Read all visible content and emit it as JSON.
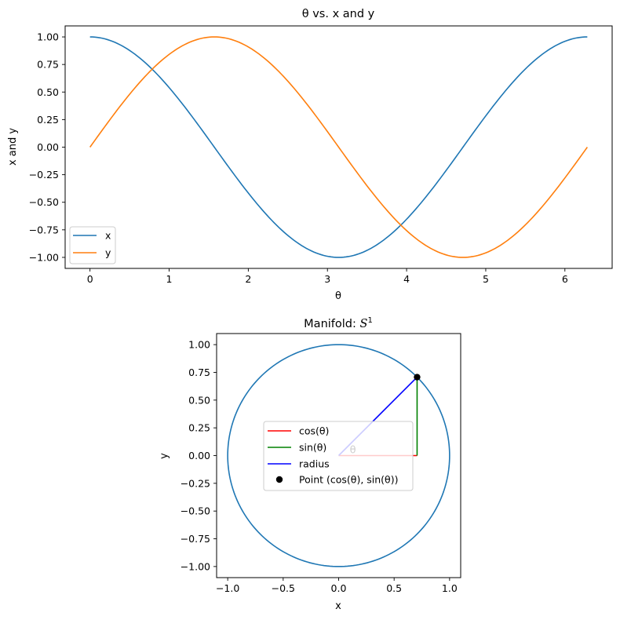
{
  "chart_data": [
    {
      "type": "line",
      "title": "θ vs. x and y",
      "xlabel": "θ",
      "ylabel": "x and y",
      "xlim": [
        -0.314,
        6.597
      ],
      "ylim": [
        -1.1,
        1.1
      ],
      "xticks": [
        0,
        1,
        2,
        3,
        4,
        5,
        6
      ],
      "xtick_labels": [
        "0",
        "1",
        "2",
        "3",
        "4",
        "5",
        "6"
      ],
      "yticks": [
        -1.0,
        -0.75,
        -0.5,
        -0.25,
        0.0,
        0.25,
        0.5,
        0.75,
        1.0
      ],
      "ytick_labels": [
        "−1.00",
        "−0.75",
        "−0.50",
        "−0.25",
        "0.00",
        "0.25",
        "0.50",
        "0.75",
        "1.00"
      ],
      "x_domain": [
        0,
        6.2832
      ],
      "series": [
        {
          "name": "x",
          "function": "cos",
          "color": "#1f77b4"
        },
        {
          "name": "y",
          "function": "sin",
          "color": "#ff7f0e"
        }
      ],
      "grid": false,
      "legend_position": "lower-left"
    },
    {
      "type": "line",
      "title_text": "Manifold: ",
      "title_math_base": "S",
      "title_math_sup": "1",
      "xlabel": "x",
      "ylabel": "y",
      "xlim": [
        -1.1,
        1.1
      ],
      "ylim": [
        -1.1,
        1.1
      ],
      "xticks": [
        -1.0,
        -0.5,
        0.0,
        0.5,
        1.0
      ],
      "xtick_labels": [
        "−1.0",
        "−0.5",
        "0.0",
        "0.5",
        "1.0"
      ],
      "yticks": [
        -1.0,
        -0.75,
        -0.5,
        -0.25,
        0.0,
        0.25,
        0.5,
        0.75,
        1.0
      ],
      "ytick_labels": [
        "−1.00",
        "−0.75",
        "−0.50",
        "−0.25",
        "0.00",
        "0.25",
        "0.50",
        "0.75",
        "1.00"
      ],
      "circle": {
        "radius": 1,
        "color": "#1f77b4"
      },
      "theta": 0.7854,
      "point": {
        "x": 0.7071,
        "y": 0.7071,
        "color": "#000000"
      },
      "segments": [
        {
          "name": "cos(θ)",
          "color": "#ff0000",
          "from": [
            0,
            0
          ],
          "to": [
            0.7071,
            0
          ]
        },
        {
          "name": "sin(θ)",
          "color": "#008000",
          "from": [
            0.7071,
            0
          ],
          "to": [
            0.7071,
            0.7071
          ]
        },
        {
          "name": "radius",
          "color": "#0000ff",
          "from": [
            0,
            0
          ],
          "to": [
            0.7071,
            0.7071
          ]
        }
      ],
      "point_label": "Point (cos(θ), sin(θ))",
      "angle_label": "θ",
      "angle_label_pos": [
        0.1,
        0.02
      ],
      "grid": false,
      "legend_position": "center"
    }
  ]
}
